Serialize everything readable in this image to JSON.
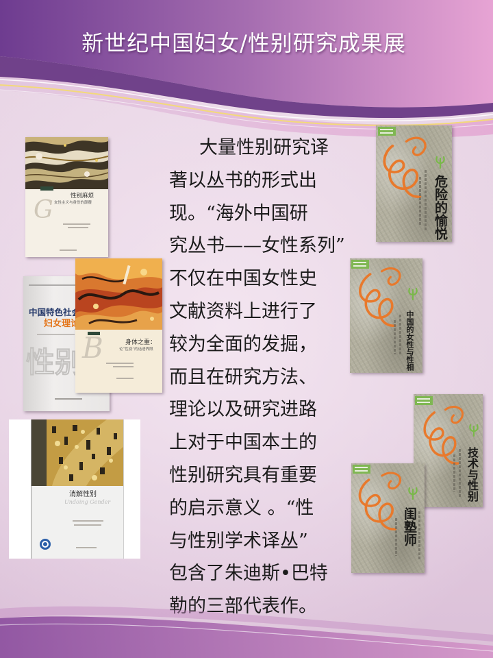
{
  "theme": {
    "header_left": "#6e3c90",
    "header_mid": "#a56db0",
    "header_right": "#e7a4d4",
    "band": "#5b2779",
    "accent_line": "#f3d97a",
    "title_text": "#ffffff",
    "body_text": "#1b1b1b",
    "swirl": "#e8792c",
    "leaf": "#7ab84a",
    "series_blue": "#263a6b",
    "series_orange": "#e4761b",
    "footer_left": "#8a4c9d",
    "footer_right": "#d495c8"
  },
  "slide": {
    "title": "新世纪中国妇女/性别研究成果展",
    "body_lines": [
      "大量性别研究译",
      "著以丛书的形式出",
      "现。“海外中国研",
      "究丛书——女性系列”",
      "不仅在中国女性史",
      "文献资料上进行了",
      "较为全面的发掘，",
      "而且在研究方法、",
      "理论以及研究进路",
      "上对于中国本土的",
      "性别研究具有重要",
      "的启示意义 。“性",
      "与性别学术译丛”",
      "包含了朱迪斯•巴特",
      "勒的三部代表作。"
    ]
  },
  "books": {
    "gender_trouble": {
      "title": "性别麻烦",
      "subtitle": "女性主义与身份的颠覆",
      "monogram": "G"
    },
    "series_cover": {
      "line1": "中国特色社会",
      "line2": "妇女理论丛",
      "watermark": "性别"
    },
    "bodies_that_matter": {
      "title": "身体之重：",
      "subtitle": "论“性别”的话语界限",
      "monogram": "B"
    },
    "undoing_gender": {
      "title": "消解性别",
      "script": "Undoing Gender"
    },
    "dangerous_pleasures": {
      "title": "危险的愉悦"
    },
    "women_and_sexuality": {
      "title": "中国的女性与性相"
    },
    "technology_and_gender": {
      "title": "技术与性别"
    },
    "inner_chamber_teachers": {
      "title": "闺塾师"
    }
  }
}
